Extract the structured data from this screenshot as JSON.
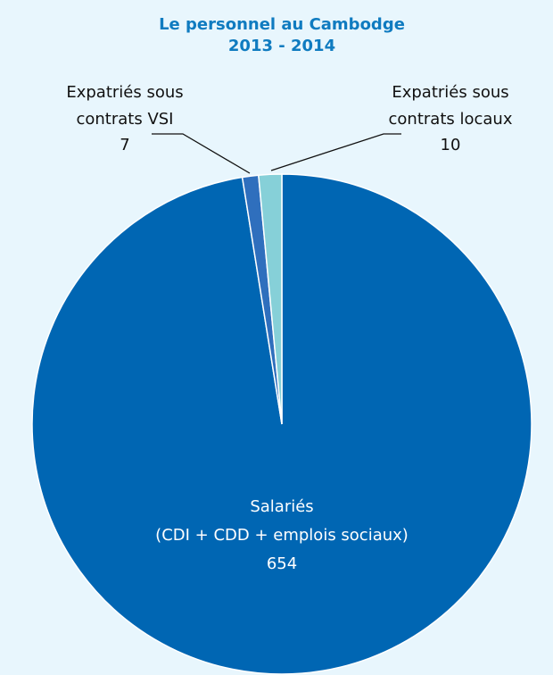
{
  "chart_data": {
    "type": "pie",
    "title": [
      "Le personnel au Cambodge",
      "2013 - 2014"
    ],
    "categories": [
      [
        "Salariés",
        "(CDI + CDD + emplois sociaux)"
      ],
      [
        "Expatriés sous",
        "contrats VSI"
      ],
      [
        "Expatriés sous",
        "contrats locaux"
      ]
    ],
    "values": [
      654,
      7,
      10
    ],
    "colors": [
      "#0066b3",
      "#2f6fbd",
      "#86d0d8"
    ]
  }
}
